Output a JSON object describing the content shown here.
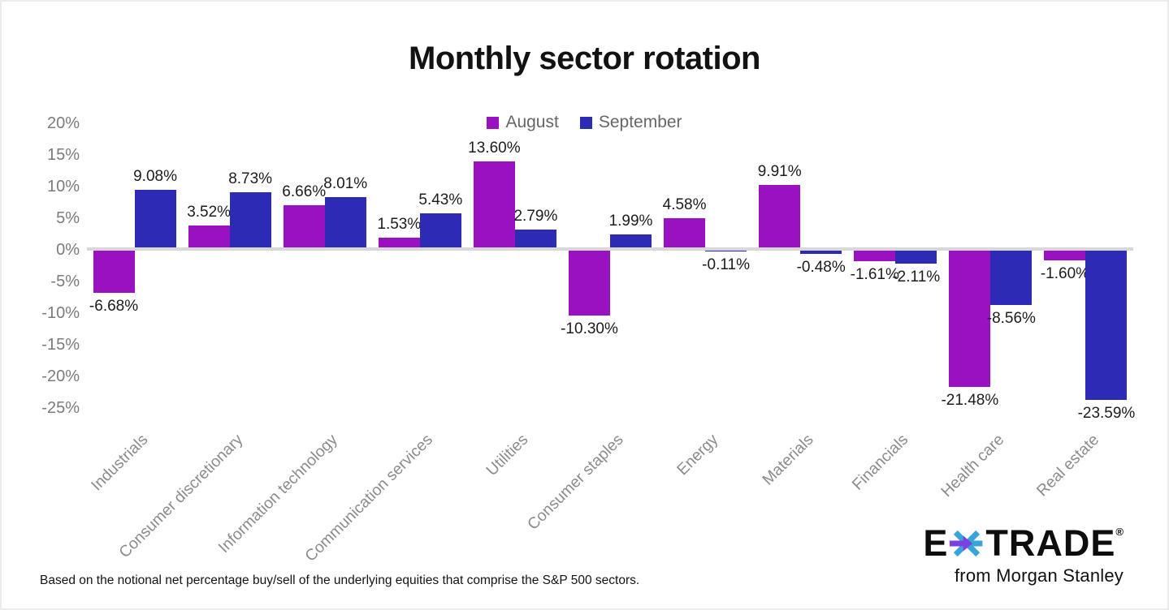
{
  "title": "Monthly sector rotation",
  "footnote": "Based on the notional net percentage buy/sell of the underlying equities that comprise the S&P 500 sectors.",
  "logo": {
    "brand_left": "E",
    "brand_right": "TRADE",
    "registered_mark": "®",
    "tagline": "from Morgan Stanley",
    "asterisk_purple": "#7d3fdf",
    "asterisk_cyan": "#38a5da"
  },
  "colors": {
    "august_bar": "#9a11c2",
    "september_bar": "#2d2bb5",
    "axis_text": "#7b7b7b",
    "category_text": "#8b8b8b",
    "value_text": "#1c1c1c",
    "zero_line": "#d8d8d8",
    "title_text": "#121212"
  },
  "chart_data": {
    "type": "bar",
    "title": "Monthly sector rotation",
    "legend_position": "top",
    "grid": false,
    "categories": [
      "Industrials",
      "Consumer discretionary",
      "Information technology",
      "Communication services",
      "Utilities",
      "Consumer staples",
      "Energy",
      "Materials",
      "Financials",
      "Health care",
      "Real estate"
    ],
    "series": [
      {
        "name": "August",
        "color": "#9a11c2",
        "values": [
          -6.68,
          3.52,
          6.66,
          1.53,
          13.6,
          -10.3,
          4.58,
          9.91,
          -1.61,
          -21.48,
          -1.6
        ],
        "labels": [
          "-6.68%",
          "3.52%",
          "6.66%",
          "1.53%",
          "13.60%",
          "-10.30%",
          "4.58%",
          "9.91%",
          "-1.61%",
          "-21.48%",
          "-1.60%"
        ]
      },
      {
        "name": "September",
        "color": "#2d2bb5",
        "values": [
          9.08,
          8.73,
          8.01,
          5.43,
          2.79,
          1.99,
          -0.11,
          -0.48,
          -2.11,
          -8.56,
          -23.59
        ],
        "labels": [
          "9.08%",
          "8.73%",
          "8.01%",
          "5.43%",
          "2.79%",
          "1.99%",
          "-0.11%",
          "-0.48%",
          "-2.11%",
          "-8.56%",
          "-23.59%"
        ]
      }
    ],
    "y_axis": {
      "unit": "%",
      "min": -25,
      "max": 20,
      "step": 5,
      "tick_labels": [
        "20%",
        "15%",
        "10%",
        "5%",
        "0%",
        "-5%",
        "-10%",
        "-15%",
        "-20%",
        "-25%"
      ],
      "tick_values": [
        20,
        15,
        10,
        5,
        0,
        -5,
        -10,
        -15,
        -20,
        -25
      ]
    }
  }
}
